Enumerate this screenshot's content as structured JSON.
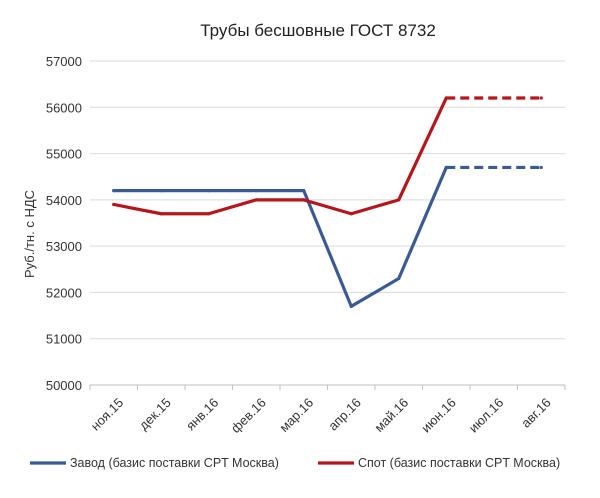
{
  "chart_data": {
    "type": "line",
    "title": "Трубы бесшовные ГОСТ 8732",
    "ylabel": "Руб./тн. с НДС",
    "xlabel": "",
    "categories": [
      "ноя.15",
      "дек.15",
      "янв.16",
      "фев.16",
      "мар.16",
      "апр.16",
      "май.16",
      "июн.16",
      "июл.16",
      "авг.16"
    ],
    "ylim": [
      50000,
      57000
    ],
    "yticks": [
      50000,
      51000,
      52000,
      53000,
      54000,
      55000,
      56000,
      57000
    ],
    "grid": "horizontal",
    "legend_position": "bottom",
    "series": [
      {
        "name": "Завод (базис поставки CPT Москва)",
        "color": "#3a5a93",
        "values": [
          54200,
          54200,
          54200,
          54200,
          54200,
          51700,
          52300,
          54700,
          54700,
          54700
        ],
        "dashed_from_index": 7
      },
      {
        "name": "Спот (базис поставки CPT Москва)",
        "color": "#b5161c",
        "values": [
          53900,
          53700,
          53700,
          54000,
          54000,
          53700,
          54000,
          56200,
          56200,
          56200
        ],
        "dashed_from_index": 7
      }
    ]
  }
}
